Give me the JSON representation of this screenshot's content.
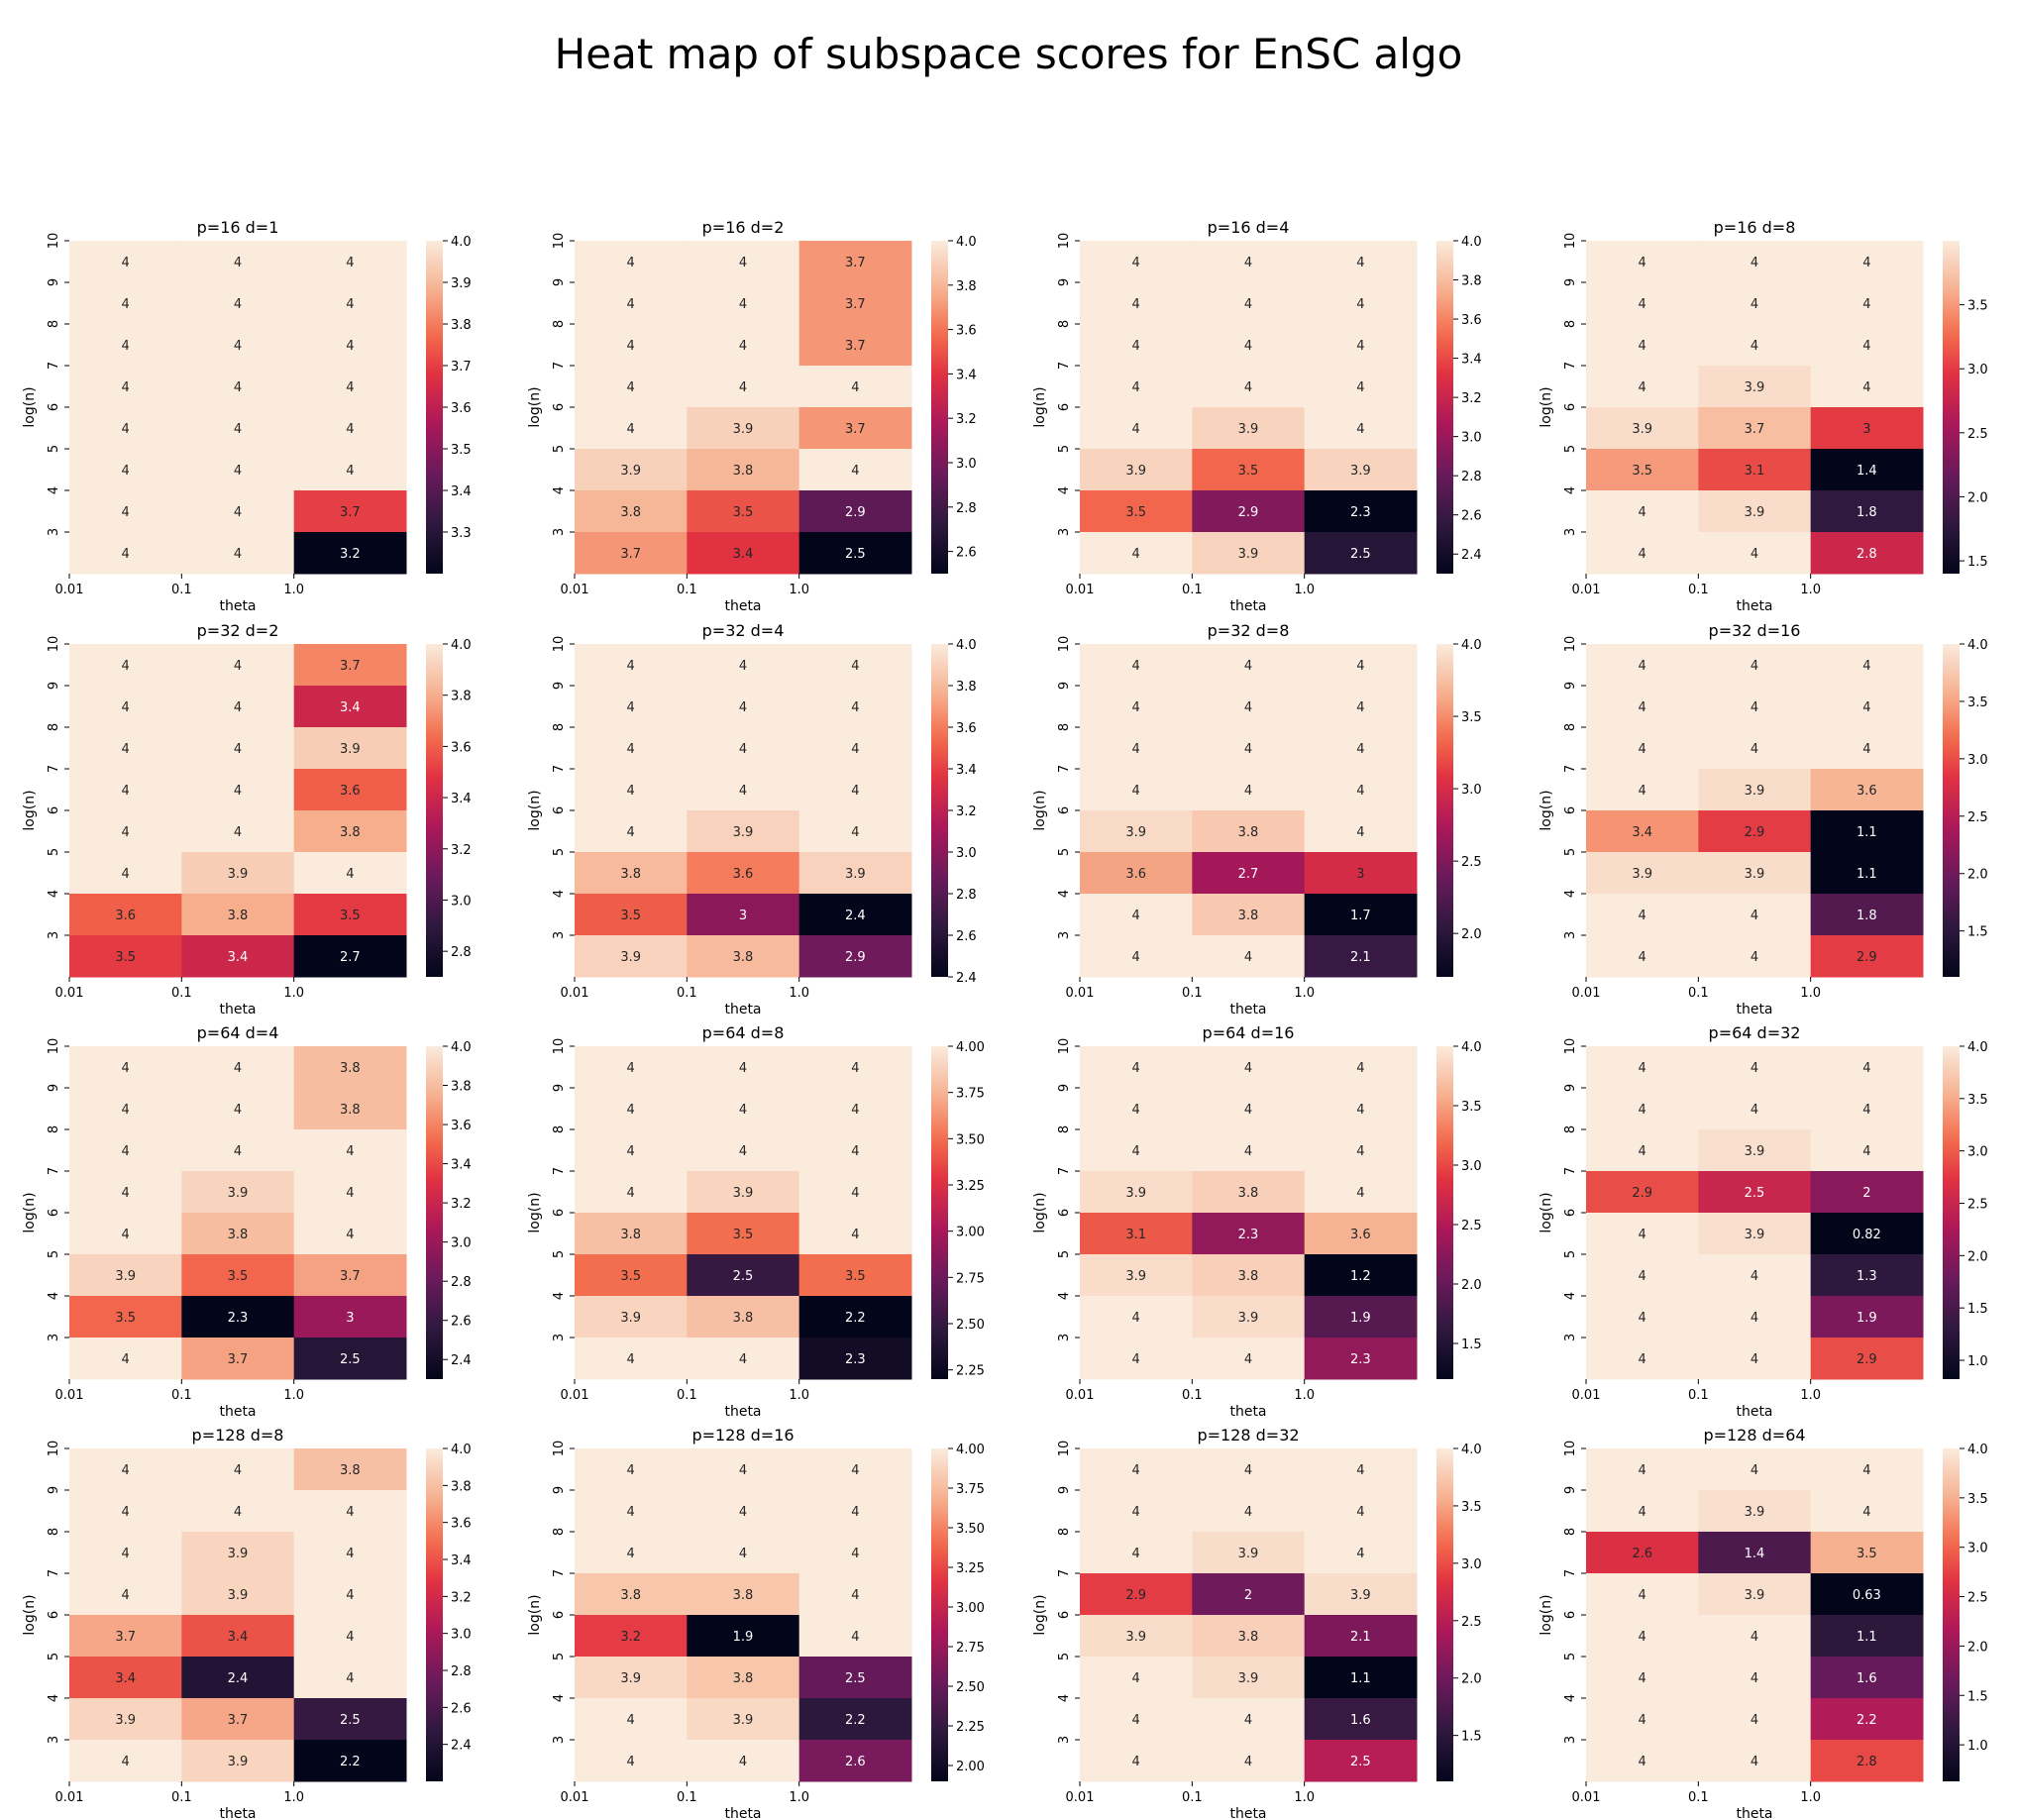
{
  "figure": {
    "title": "Heat map of subspace scores for EnSC algo"
  },
  "chart_data": [
    {
      "type": "heatmap",
      "title": "p=16 d=1",
      "xlabel": "theta",
      "ylabel": "log(n)",
      "x_ticks": [
        "0.01",
        "0.1",
        "1.0"
      ],
      "y_ticks": [
        "10",
        "9",
        "8",
        "7",
        "6",
        "5",
        "4",
        "3"
      ],
      "values": [
        [
          4,
          4,
          4
        ],
        [
          4,
          4,
          4
        ],
        [
          4,
          4,
          4
        ],
        [
          4,
          4,
          4
        ],
        [
          4,
          4,
          4
        ],
        [
          4,
          4,
          4
        ],
        [
          4,
          4,
          3.7
        ],
        [
          4,
          4,
          3.2
        ]
      ],
      "vmin": 3.2,
      "vmax": 4.0,
      "colorbar_ticks": [
        "4.0",
        "3.9",
        "3.8",
        "3.7",
        "3.6",
        "3.5",
        "3.4",
        "3.3"
      ]
    },
    {
      "type": "heatmap",
      "title": "p=16 d=2",
      "xlabel": "theta",
      "ylabel": "log(n)",
      "x_ticks": [
        "0.01",
        "0.1",
        "1.0"
      ],
      "y_ticks": [
        "10",
        "9",
        "8",
        "7",
        "6",
        "5",
        "4",
        "3"
      ],
      "values": [
        [
          4,
          4,
          3.7
        ],
        [
          4,
          4,
          3.7
        ],
        [
          4,
          4,
          3.7
        ],
        [
          4,
          4,
          4
        ],
        [
          4,
          3.9,
          3.7
        ],
        [
          3.9,
          3.8,
          4
        ],
        [
          3.8,
          3.5,
          2.9
        ],
        [
          3.7,
          3.4,
          2.5
        ]
      ],
      "vmin": 2.5,
      "vmax": 4.0,
      "colorbar_ticks": [
        "4.0",
        "3.8",
        "3.6",
        "3.4",
        "3.2",
        "3.0",
        "2.8",
        "2.6"
      ]
    },
    {
      "type": "heatmap",
      "title": "p=16 d=4",
      "xlabel": "theta",
      "ylabel": "log(n)",
      "x_ticks": [
        "0.01",
        "0.1",
        "1.0"
      ],
      "y_ticks": [
        "10",
        "9",
        "8",
        "7",
        "6",
        "5",
        "4",
        "3"
      ],
      "values": [
        [
          4,
          4,
          4
        ],
        [
          4,
          4,
          4
        ],
        [
          4,
          4,
          4
        ],
        [
          4,
          4,
          4
        ],
        [
          4,
          3.9,
          4
        ],
        [
          3.9,
          3.5,
          3.9
        ],
        [
          3.5,
          2.9,
          2.3
        ],
        [
          4,
          3.9,
          2.5
        ]
      ],
      "vmin": 2.3,
      "vmax": 4.0,
      "colorbar_ticks": [
        "4.0",
        "3.8",
        "3.6",
        "3.4",
        "3.2",
        "3.0",
        "2.8",
        "2.6",
        "2.4"
      ]
    },
    {
      "type": "heatmap",
      "title": "p=16 d=8",
      "xlabel": "theta",
      "ylabel": "log(n)",
      "x_ticks": [
        "0.01",
        "0.1",
        "1.0"
      ],
      "y_ticks": [
        "10",
        "9",
        "8",
        "7",
        "6",
        "5",
        "4",
        "3"
      ],
      "values": [
        [
          4,
          4,
          4
        ],
        [
          4,
          4,
          4
        ],
        [
          4,
          4,
          4
        ],
        [
          4,
          3.9,
          4
        ],
        [
          3.9,
          3.7,
          3
        ],
        [
          3.5,
          3.1,
          1.4
        ],
        [
          4,
          3.9,
          1.8
        ],
        [
          4,
          4,
          2.8
        ]
      ],
      "vmin": 1.4,
      "vmax": 4.0,
      "colorbar_ticks": [
        "3.5",
        "3.0",
        "2.5",
        "2.0",
        "1.5"
      ]
    },
    {
      "type": "heatmap",
      "title": "p=32 d=2",
      "xlabel": "theta",
      "ylabel": "log(n)",
      "x_ticks": [
        "0.01",
        "0.1",
        "1.0"
      ],
      "y_ticks": [
        "10",
        "9",
        "8",
        "7",
        "6",
        "5",
        "4",
        "3"
      ],
      "values": [
        [
          4,
          4,
          3.7
        ],
        [
          4,
          4,
          3.4
        ],
        [
          4,
          4,
          3.9
        ],
        [
          4,
          4,
          3.6
        ],
        [
          4,
          4,
          3.8
        ],
        [
          4,
          3.9,
          4
        ],
        [
          3.6,
          3.8,
          3.5
        ],
        [
          3.5,
          3.4,
          2.7
        ]
      ],
      "vmin": 2.7,
      "vmax": 4.0,
      "colorbar_ticks": [
        "4.0",
        "3.8",
        "3.6",
        "3.4",
        "3.2",
        "3.0",
        "2.8"
      ]
    },
    {
      "type": "heatmap",
      "title": "p=32 d=4",
      "xlabel": "theta",
      "ylabel": "log(n)",
      "x_ticks": [
        "0.01",
        "0.1",
        "1.0"
      ],
      "y_ticks": [
        "10",
        "9",
        "8",
        "7",
        "6",
        "5",
        "4",
        "3"
      ],
      "values": [
        [
          4,
          4,
          4
        ],
        [
          4,
          4,
          4
        ],
        [
          4,
          4,
          4
        ],
        [
          4,
          4,
          4
        ],
        [
          4,
          3.9,
          4
        ],
        [
          3.8,
          3.6,
          3.9
        ],
        [
          3.5,
          3,
          2.4
        ],
        [
          3.9,
          3.8,
          2.9
        ]
      ],
      "vmin": 2.4,
      "vmax": 4.0,
      "colorbar_ticks": [
        "4.0",
        "3.8",
        "3.6",
        "3.4",
        "3.2",
        "3.0",
        "2.8",
        "2.6",
        "2.4"
      ]
    },
    {
      "type": "heatmap",
      "title": "p=32 d=8",
      "xlabel": "theta",
      "ylabel": "log(n)",
      "x_ticks": [
        "0.01",
        "0.1",
        "1.0"
      ],
      "y_ticks": [
        "10",
        "9",
        "8",
        "7",
        "6",
        "5",
        "4",
        "3"
      ],
      "values": [
        [
          4,
          4,
          4
        ],
        [
          4,
          4,
          4
        ],
        [
          4,
          4,
          4
        ],
        [
          4,
          4,
          4
        ],
        [
          3.9,
          3.8,
          4
        ],
        [
          3.6,
          2.7,
          3
        ],
        [
          4,
          3.8,
          1.7
        ],
        [
          4,
          4,
          2.1
        ]
      ],
      "vmin": 1.7,
      "vmax": 4.0,
      "colorbar_ticks": [
        "4.0",
        "3.5",
        "3.0",
        "2.5",
        "2.0"
      ]
    },
    {
      "type": "heatmap",
      "title": "p=32 d=16",
      "xlabel": "theta",
      "ylabel": "log(n)",
      "x_ticks": [
        "0.01",
        "0.1",
        "1.0"
      ],
      "y_ticks": [
        "10",
        "9",
        "8",
        "7",
        "6",
        "5",
        "4",
        "3"
      ],
      "values": [
        [
          4,
          4,
          4
        ],
        [
          4,
          4,
          4
        ],
        [
          4,
          4,
          4
        ],
        [
          4,
          3.9,
          3.6
        ],
        [
          3.4,
          2.9,
          1.1
        ],
        [
          3.9,
          3.9,
          1.1
        ],
        [
          4,
          4,
          1.8
        ],
        [
          4,
          4,
          2.9
        ]
      ],
      "vmin": 1.1,
      "vmax": 4.0,
      "colorbar_ticks": [
        "4.0",
        "3.5",
        "3.0",
        "2.5",
        "2.0",
        "1.5"
      ]
    },
    {
      "type": "heatmap",
      "title": "p=64 d=4",
      "xlabel": "theta",
      "ylabel": "log(n)",
      "x_ticks": [
        "0.01",
        "0.1",
        "1.0"
      ],
      "y_ticks": [
        "10",
        "9",
        "8",
        "7",
        "6",
        "5",
        "4",
        "3"
      ],
      "values": [
        [
          4,
          4,
          3.8
        ],
        [
          4,
          4,
          3.8
        ],
        [
          4,
          4,
          4
        ],
        [
          4,
          3.9,
          4
        ],
        [
          4,
          3.8,
          4
        ],
        [
          3.9,
          3.5,
          3.7
        ],
        [
          3.5,
          2.3,
          3
        ],
        [
          4,
          3.7,
          2.5
        ]
      ],
      "vmin": 2.3,
      "vmax": 4.0,
      "colorbar_ticks": [
        "4.0",
        "3.8",
        "3.6",
        "3.4",
        "3.2",
        "3.0",
        "2.8",
        "2.6",
        "2.4"
      ]
    },
    {
      "type": "heatmap",
      "title": "p=64 d=8",
      "xlabel": "theta",
      "ylabel": "log(n)",
      "x_ticks": [
        "0.01",
        "0.1",
        "1.0"
      ],
      "y_ticks": [
        "10",
        "9",
        "8",
        "7",
        "6",
        "5",
        "4",
        "3"
      ],
      "values": [
        [
          4,
          4,
          4
        ],
        [
          4,
          4,
          4
        ],
        [
          4,
          4,
          4
        ],
        [
          4,
          3.9,
          4
        ],
        [
          3.8,
          3.5,
          4
        ],
        [
          3.5,
          2.5,
          3.5
        ],
        [
          3.9,
          3.8,
          2.2
        ],
        [
          4,
          4,
          2.3
        ]
      ],
      "vmin": 2.2,
      "vmax": 4.0,
      "colorbar_ticks": [
        "4.00",
        "3.75",
        "3.50",
        "3.25",
        "3.00",
        "2.75",
        "2.50",
        "2.25"
      ]
    },
    {
      "type": "heatmap",
      "title": "p=64 d=16",
      "xlabel": "theta",
      "ylabel": "log(n)",
      "x_ticks": [
        "0.01",
        "0.1",
        "1.0"
      ],
      "y_ticks": [
        "10",
        "9",
        "8",
        "7",
        "6",
        "5",
        "4",
        "3"
      ],
      "values": [
        [
          4,
          4,
          4
        ],
        [
          4,
          4,
          4
        ],
        [
          4,
          4,
          4
        ],
        [
          3.9,
          3.8,
          4
        ],
        [
          3.1,
          2.3,
          3.6
        ],
        [
          3.9,
          3.8,
          1.2
        ],
        [
          4,
          3.9,
          1.9
        ],
        [
          4,
          4,
          2.3
        ]
      ],
      "vmin": 1.2,
      "vmax": 4.0,
      "colorbar_ticks": [
        "4.0",
        "3.5",
        "3.0",
        "2.5",
        "2.0",
        "1.5"
      ]
    },
    {
      "type": "heatmap",
      "title": "p=64 d=32",
      "xlabel": "theta",
      "ylabel": "log(n)",
      "x_ticks": [
        "0.01",
        "0.1",
        "1.0"
      ],
      "y_ticks": [
        "10",
        "9",
        "8",
        "7",
        "6",
        "5",
        "4",
        "3"
      ],
      "values": [
        [
          4,
          4,
          4
        ],
        [
          4,
          4,
          4
        ],
        [
          4,
          3.9,
          4
        ],
        [
          2.9,
          2.5,
          2
        ],
        [
          4,
          3.9,
          0.82
        ],
        [
          4,
          4,
          1.3
        ],
        [
          4,
          4,
          1.9
        ],
        [
          4,
          4,
          2.9
        ]
      ],
      "vmin": 0.82,
      "vmax": 4.0,
      "colorbar_ticks": [
        "4.0",
        "3.5",
        "3.0",
        "2.5",
        "2.0",
        "1.5",
        "1.0"
      ]
    },
    {
      "type": "heatmap",
      "title": "p=128 d=8",
      "xlabel": "theta",
      "ylabel": "log(n)",
      "x_ticks": [
        "0.01",
        "0.1",
        "1.0"
      ],
      "y_ticks": [
        "10",
        "9",
        "8",
        "7",
        "6",
        "5",
        "4",
        "3"
      ],
      "values": [
        [
          4,
          4,
          3.8
        ],
        [
          4,
          4,
          4
        ],
        [
          4,
          3.9,
          4
        ],
        [
          4,
          3.9,
          4
        ],
        [
          3.7,
          3.4,
          4
        ],
        [
          3.4,
          2.4,
          4
        ],
        [
          3.9,
          3.7,
          2.5
        ],
        [
          4,
          3.9,
          2.2
        ]
      ],
      "vmin": 2.2,
      "vmax": 4.0,
      "colorbar_ticks": [
        "4.0",
        "3.8",
        "3.6",
        "3.4",
        "3.2",
        "3.0",
        "2.8",
        "2.6",
        "2.4"
      ]
    },
    {
      "type": "heatmap",
      "title": "p=128 d=16",
      "xlabel": "theta",
      "ylabel": "log(n)",
      "x_ticks": [
        "0.01",
        "0.1",
        "1.0"
      ],
      "y_ticks": [
        "10",
        "9",
        "8",
        "7",
        "6",
        "5",
        "4",
        "3"
      ],
      "values": [
        [
          4,
          4,
          4
        ],
        [
          4,
          4,
          4
        ],
        [
          4,
          4,
          4
        ],
        [
          3.8,
          3.8,
          4
        ],
        [
          3.2,
          1.9,
          4
        ],
        [
          3.9,
          3.8,
          2.5
        ],
        [
          4,
          3.9,
          2.2
        ],
        [
          4,
          4,
          2.6
        ]
      ],
      "vmin": 1.9,
      "vmax": 4.0,
      "colorbar_ticks": [
        "4.00",
        "3.75",
        "3.50",
        "3.25",
        "3.00",
        "2.75",
        "2.50",
        "2.25",
        "2.00"
      ]
    },
    {
      "type": "heatmap",
      "title": "p=128 d=32",
      "xlabel": "theta",
      "ylabel": "log(n)",
      "x_ticks": [
        "0.01",
        "0.1",
        "1.0"
      ],
      "y_ticks": [
        "10",
        "9",
        "8",
        "7",
        "6",
        "5",
        "4",
        "3"
      ],
      "values": [
        [
          4,
          4,
          4
        ],
        [
          4,
          4,
          4
        ],
        [
          4,
          3.9,
          4
        ],
        [
          2.9,
          2,
          3.9
        ],
        [
          3.9,
          3.8,
          2.1
        ],
        [
          4,
          3.9,
          1.1
        ],
        [
          4,
          4,
          1.6
        ],
        [
          4,
          4,
          2.5
        ]
      ],
      "vmin": 1.1,
      "vmax": 4.0,
      "colorbar_ticks": [
        "4.0",
        "3.5",
        "3.0",
        "2.5",
        "2.0",
        "1.5"
      ]
    },
    {
      "type": "heatmap",
      "title": "p=128 d=64",
      "xlabel": "theta",
      "ylabel": "log(n)",
      "x_ticks": [
        "0.01",
        "0.1",
        "1.0"
      ],
      "y_ticks": [
        "10",
        "9",
        "8",
        "7",
        "6",
        "5",
        "4",
        "3"
      ],
      "values": [
        [
          4,
          4,
          4
        ],
        [
          4,
          3.9,
          4
        ],
        [
          2.6,
          1.4,
          3.5
        ],
        [
          4,
          3.9,
          0.63
        ],
        [
          4,
          4,
          1.1
        ],
        [
          4,
          4,
          1.6
        ],
        [
          4,
          4,
          2.2
        ],
        [
          4,
          4,
          2.8
        ]
      ],
      "vmin": 0.63,
      "vmax": 4.0,
      "colorbar_ticks": [
        "4.0",
        "3.5",
        "3.0",
        "2.5",
        "2.0",
        "1.5",
        "1.0"
      ]
    }
  ]
}
